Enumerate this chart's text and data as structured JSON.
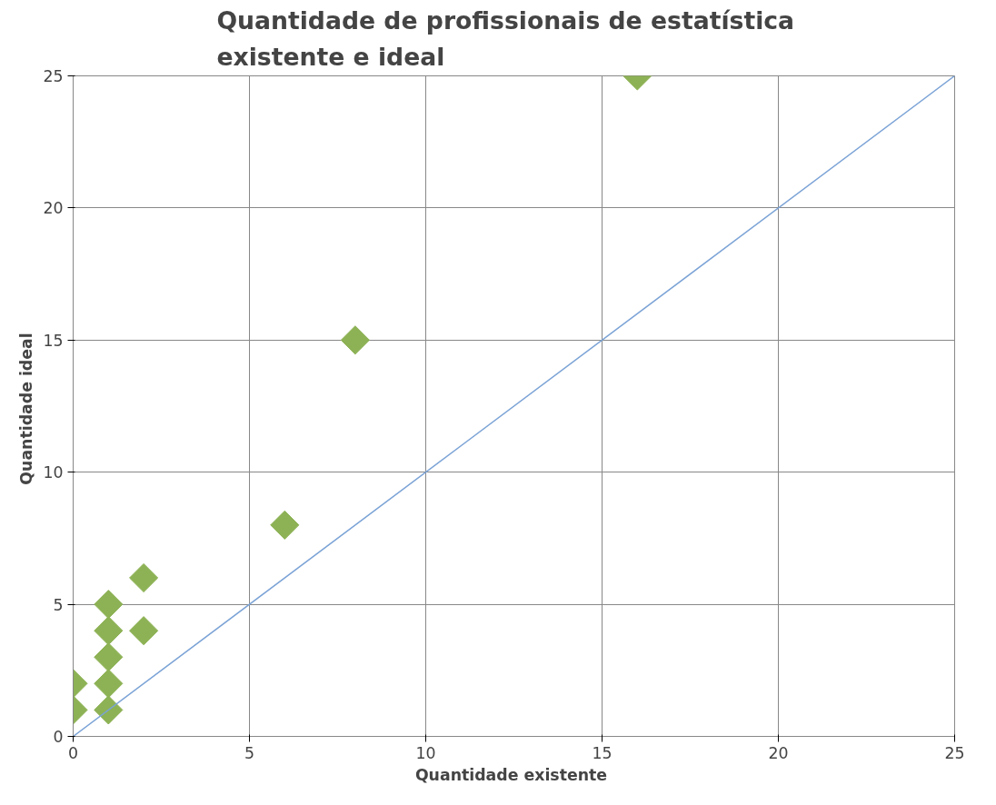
{
  "chart_data": {
    "type": "scatter",
    "title": "Quantidade  de profissionais  de estatística\nexistente e ideal",
    "xlabel": "Quantidade  existente",
    "ylabel": "Quantidade  ideal",
    "xlim": [
      0,
      25
    ],
    "ylim": [
      0,
      25
    ],
    "xticks": [
      0,
      5,
      10,
      15,
      20,
      25
    ],
    "yticks": [
      0,
      5,
      10,
      15,
      20,
      25
    ],
    "grid": true,
    "marker": "diamond",
    "series": [
      {
        "color": "#8db255",
        "x": [
          0,
          0,
          1,
          1,
          1,
          1,
          1,
          2,
          2,
          6,
          8,
          16
        ],
        "values": [
          1,
          2,
          1,
          2,
          3,
          4,
          5,
          4,
          6,
          8,
          15,
          25
        ]
      },
      {
        "type": "line",
        "color": "#7ba3d6",
        "marker": "none",
        "line_style": "solid",
        "x": [
          0,
          25
        ],
        "values": [
          0,
          25
        ]
      }
    ]
  }
}
